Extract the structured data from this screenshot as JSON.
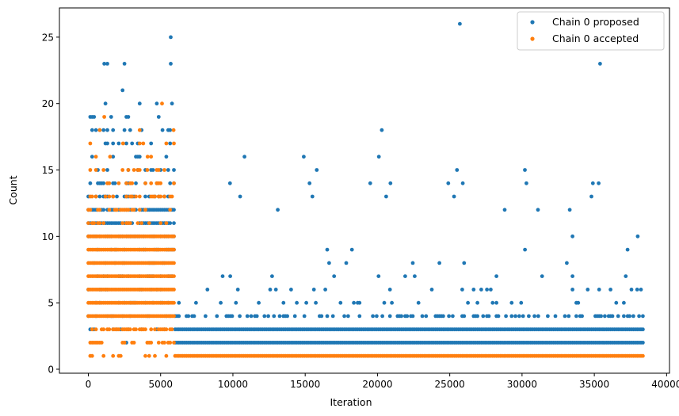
{
  "chart_data": {
    "type": "scatter",
    "xlabel": "Iteration",
    "ylabel": "Count",
    "xlim": [
      -2000,
      40200
    ],
    "ylim": [
      -0.3,
      27.2
    ],
    "xticks": [
      0,
      5000,
      10000,
      15000,
      20000,
      25000,
      30000,
      35000,
      40000
    ],
    "yticks": [
      0,
      5,
      10,
      15,
      20,
      25
    ],
    "grid": false,
    "legend_position": "top-right",
    "series": [
      {
        "name": "Chain 0 proposed",
        "color": "#1f77b4",
        "x_start": 0,
        "x_end": 38400,
        "dense_values": [
          2,
          3
        ],
        "bands": [
          {
            "x_range": [
              0,
              6000
            ],
            "counts": {
              "1": 0,
              "2": 0.15,
              "3": 0.25,
              "4": 0.3,
              "5": 0.3,
              "6": 0.3,
              "7": 0.3,
              "8": 0.3,
              "9": 0.35,
              "10": 0.5,
              "11": 0.9,
              "12": 0.9,
              "13": 0.45,
              "14": 0.3,
              "15": 0.3,
              "16": 0.2,
              "17": 0.2,
              "18": 0.12,
              "19": 0.08,
              "20": 0.06,
              "21": 0.03,
              "22": 0.02,
              "23": 0.01
            }
          },
          {
            "x_range": [
              6000,
              38400
            ],
            "counts": {
              "2": 1.0,
              "3": 1.0,
              "4": 0.35,
              "5": 0.12,
              "6": 0.06,
              "7": 0.04,
              "8": 0.02,
              "9": 0.01,
              "10": 0.006,
              "11": 0.003,
              "12": 0.002
            }
          }
        ],
        "outliers": [
          {
            "x": 5700,
            "y": 25
          },
          {
            "x": 25700,
            "y": 26
          },
          {
            "x": 35400,
            "y": 23
          },
          {
            "x": 1100,
            "y": 23
          },
          {
            "x": 2500,
            "y": 23
          },
          {
            "x": 5700,
            "y": 23
          },
          {
            "x": 20300,
            "y": 18
          },
          {
            "x": 20100,
            "y": 16
          },
          {
            "x": 14900,
            "y": 16
          },
          {
            "x": 10800,
            "y": 16
          },
          {
            "x": 25500,
            "y": 15
          },
          {
            "x": 30200,
            "y": 15
          },
          {
            "x": 15800,
            "y": 15
          },
          {
            "x": 9800,
            "y": 14
          },
          {
            "x": 34900,
            "y": 14
          },
          {
            "x": 35300,
            "y": 14
          },
          {
            "x": 30300,
            "y": 14
          },
          {
            "x": 24900,
            "y": 14
          },
          {
            "x": 25900,
            "y": 14
          },
          {
            "x": 15300,
            "y": 14
          },
          {
            "x": 19500,
            "y": 14
          },
          {
            "x": 20900,
            "y": 14
          },
          {
            "x": 10500,
            "y": 13
          },
          {
            "x": 25300,
            "y": 13
          },
          {
            "x": 34800,
            "y": 13
          },
          {
            "x": 15500,
            "y": 13
          },
          {
            "x": 20600,
            "y": 13
          },
          {
            "x": 33300,
            "y": 12
          },
          {
            "x": 28800,
            "y": 12
          },
          {
            "x": 31100,
            "y": 12
          },
          {
            "x": 38000,
            "y": 10
          },
          {
            "x": 37300,
            "y": 9
          },
          {
            "x": 17000,
            "y": 7
          }
        ]
      },
      {
        "name": "Chain 0 accepted",
        "color": "#ff7f0e",
        "x_start": 0,
        "x_end": 38400,
        "dense_values": [
          1
        ],
        "bands": [
          {
            "x_range": [
              0,
              6000
            ],
            "counts": {
              "1": 0.2,
              "2": 0.45,
              "3": 0.7,
              "4": 1.0,
              "5": 1.0,
              "6": 1.0,
              "7": 1.0,
              "8": 1.0,
              "9": 1.0,
              "10": 1.0,
              "11": 0.35,
              "12": 0.35,
              "13": 0.35,
              "14": 0.3,
              "15": 0.25,
              "16": 0.12,
              "17": 0.08,
              "18": 0.04
            }
          },
          {
            "x_range": [
              6000,
              38400
            ],
            "counts": {
              "1": 1.0
            }
          }
        ],
        "outliers": [
          {
            "x": 5100,
            "y": 20
          },
          {
            "x": 1100,
            "y": 19
          },
          {
            "x": 5900,
            "y": 18
          },
          {
            "x": 2400,
            "y": 17
          },
          {
            "x": 1500,
            "y": 16
          },
          {
            "x": 4100,
            "y": 16
          },
          {
            "x": 3800,
            "y": 17
          }
        ]
      }
    ]
  }
}
